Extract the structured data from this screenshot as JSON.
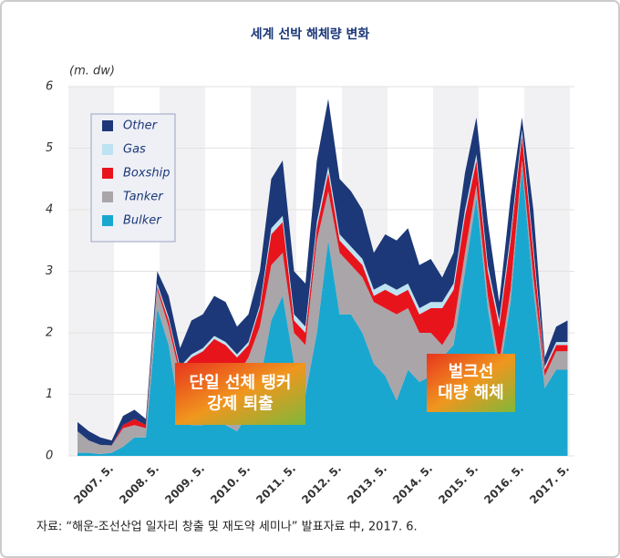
{
  "chart_data": {
    "type": "stacked-area",
    "title": "세계 선박 해체량 변화",
    "y_label": "(m. dw)",
    "source": "자료: “해운-조선산업 일자리 창출 및 재도약 세미나” 발표자료 中, 2017. 6.",
    "annotations": [
      [
        "단일 선체 탱커",
        "강제 퇴출"
      ],
      [
        "벌크선",
        "대량 해체"
      ]
    ],
    "categories": [
      null,
      null,
      null,
      "2007. 5.",
      null,
      null,
      null,
      "2008. 5.",
      null,
      null,
      null,
      "2009. 5.",
      null,
      null,
      null,
      "2010. 5.",
      null,
      null,
      null,
      "2011. 5.",
      null,
      null,
      null,
      "2012. 5.",
      null,
      null,
      null,
      "2013. 5.",
      null,
      null,
      null,
      "2014. 5.",
      null,
      null,
      null,
      "2015. 5.",
      null,
      null,
      null,
      "2016. 5.",
      null,
      null,
      null,
      "2017. 5."
    ],
    "ylim": [
      0,
      6
    ],
    "yticks": [
      0,
      1,
      2,
      3,
      4,
      5,
      6
    ],
    "legend": "upper left",
    "series": [
      {
        "name": "Bulker",
        "color": "#19a7d0",
        "values": [
          0.05,
          0.05,
          0.03,
          0.05,
          0.15,
          0.3,
          0.3,
          2.4,
          1.8,
          0.6,
          0.5,
          0.5,
          0.6,
          0.5,
          0.4,
          0.7,
          1.2,
          2.2,
          2.6,
          1.5,
          1.0,
          2.0,
          3.5,
          2.3,
          2.3,
          2.0,
          1.5,
          1.3,
          0.9,
          1.4,
          1.2,
          1.3,
          1.6,
          1.8,
          3.0,
          4.2,
          2.4,
          1.3,
          2.5,
          4.7,
          2.7,
          1.1,
          1.4,
          1.4
        ]
      },
      {
        "name": "Tanker",
        "color": "#aaa5a9",
        "values": [
          0.35,
          0.2,
          0.15,
          0.12,
          0.3,
          0.2,
          0.15,
          0.3,
          0.3,
          0.7,
          0.9,
          0.9,
          0.9,
          0.8,
          0.9,
          0.9,
          0.9,
          0.9,
          0.7,
          0.5,
          0.8,
          1.5,
          0.8,
          1.0,
          0.8,
          0.9,
          1.0,
          1.1,
          1.4,
          1.0,
          0.8,
          0.7,
          0.2,
          0.3,
          0.3,
          0.2,
          0.2,
          0.2,
          0.2,
          0.1,
          0.2,
          0.2,
          0.3,
          0.3
        ]
      },
      {
        "name": "Boxship",
        "color": "#e8141c",
        "values": [
          0,
          0,
          0,
          0,
          0.05,
          0.1,
          0.05,
          0.05,
          0.1,
          0.1,
          0.2,
          0.3,
          0.4,
          0.5,
          0.3,
          0.2,
          0.3,
          0.5,
          0.5,
          0.2,
          0.2,
          0.2,
          0.3,
          0.2,
          0.2,
          0.2,
          0.1,
          0.3,
          0.3,
          0.3,
          0.3,
          0.4,
          0.6,
          0.6,
          0.6,
          0.4,
          0.4,
          0.6,
          0.8,
          0.4,
          0.4,
          0.1,
          0.1,
          0.1
        ]
      },
      {
        "name": "Gas",
        "color": "#bde2f2",
        "values": [
          0,
          0,
          0,
          0,
          0,
          0,
          0,
          0.05,
          0.05,
          0.05,
          0.05,
          0.05,
          0.05,
          0.05,
          0.05,
          0.05,
          0.05,
          0.1,
          0.1,
          0.1,
          0.1,
          0.1,
          0.1,
          0.1,
          0.1,
          0.1,
          0.1,
          0.1,
          0.1,
          0.1,
          0.1,
          0.1,
          0.1,
          0.1,
          0.1,
          0.1,
          0.1,
          0.1,
          0.1,
          0.1,
          0.1,
          0.05,
          0.05,
          0.05
        ]
      },
      {
        "name": "Other",
        "color": "#1c3878",
        "values": [
          0.15,
          0.15,
          0.12,
          0.08,
          0.15,
          0.15,
          0.1,
          0.2,
          0.35,
          0.3,
          0.55,
          0.55,
          0.65,
          0.65,
          0.45,
          0.45,
          0.55,
          0.8,
          0.9,
          0.7,
          0.7,
          1.0,
          1.1,
          0.9,
          0.9,
          0.8,
          0.6,
          0.8,
          0.8,
          0.9,
          0.7,
          0.7,
          0.4,
          0.5,
          0.6,
          0.6,
          0.7,
          0.3,
          0.6,
          0.2,
          0.6,
          0.15,
          0.25,
          0.35
        ]
      }
    ]
  }
}
